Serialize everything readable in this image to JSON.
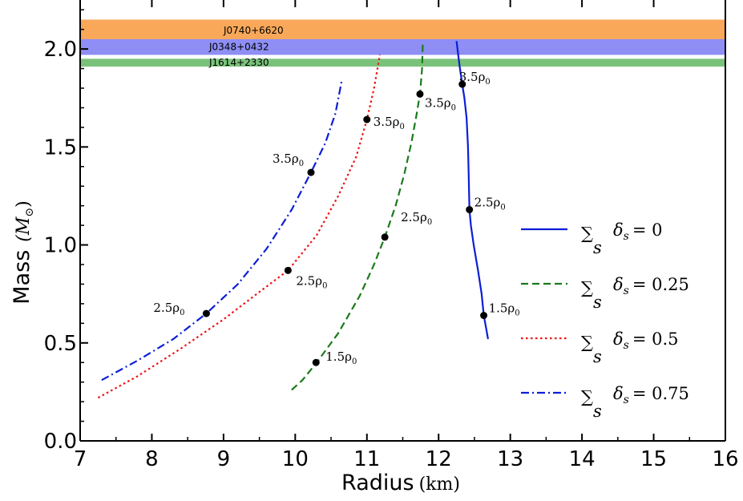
{
  "chart_data": {
    "type": "line",
    "xlabel": "Radius",
    "xlabel_unit": "(km)",
    "ylabel": "Mass",
    "ylabel_unit": "(M",
    "ylabel_unit_sub": "⊙",
    "ylabel_unit_close": ")",
    "xlim": [
      7,
      16
    ],
    "ylim": [
      0.0,
      2.25
    ],
    "x_ticks": [
      7,
      8,
      9,
      10,
      11,
      12,
      13,
      14,
      15,
      16
    ],
    "x_tick_labels": [
      "7",
      "8",
      "9",
      "10",
      "11",
      "12",
      "13",
      "14",
      "15",
      "16"
    ],
    "y_ticks": [
      0.0,
      0.5,
      1.0,
      1.5,
      2.0
    ],
    "y_tick_labels": [
      "0.0",
      "0.5",
      "1.0",
      "1.5",
      "2.0"
    ],
    "legend_position": "right",
    "bands": [
      {
        "name": "J0740+6620",
        "ymin": 2.04,
        "ymax": 2.15,
        "color": "#f9a85a"
      },
      {
        "name": "J0348+0432",
        "ymin": 1.97,
        "ymax": 2.05,
        "color": "#8e8ef5"
      },
      {
        "name": "J1614+2330",
        "ymin": 1.91,
        "ymax": 1.95,
        "color": "#7ac27a"
      }
    ],
    "series": [
      {
        "name": "∑δs = 0",
        "legend_rhs": "= 0",
        "color": "#0b1fd6",
        "dash": "solid",
        "x": [
          12.69,
          12.66,
          12.63,
          12.6,
          12.55,
          12.49,
          12.45,
          12.43,
          12.42,
          12.41,
          12.39,
          12.36,
          12.33,
          12.29,
          12.25
        ],
        "y": [
          0.52,
          0.58,
          0.64,
          0.75,
          0.87,
          1.0,
          1.1,
          1.18,
          1.35,
          1.5,
          1.65,
          1.75,
          1.82,
          1.92,
          2.04
        ],
        "markers": [
          {
            "x": 12.63,
            "y": 0.64,
            "label": "1.5ρ",
            "sub": "0"
          },
          {
            "x": 12.43,
            "y": 1.18,
            "label": "2.5ρ",
            "sub": "0"
          },
          {
            "x": 12.33,
            "y": 1.82,
            "label": "3.5ρ",
            "sub": "0"
          }
        ]
      },
      {
        "name": "∑δs = 0.25",
        "legend_rhs": "= 0.25",
        "color": "#1b7a1b",
        "dash": "long",
        "x": [
          9.95,
          10.1,
          10.3,
          10.6,
          10.9,
          11.1,
          11.25,
          11.4,
          11.52,
          11.62,
          11.69,
          11.74,
          11.77,
          11.78
        ],
        "y": [
          0.26,
          0.31,
          0.4,
          0.55,
          0.74,
          0.9,
          1.04,
          1.2,
          1.36,
          1.52,
          1.66,
          1.77,
          1.9,
          2.04
        ],
        "markers": [
          {
            "x": 10.29,
            "y": 0.4,
            "label": "1.5ρ",
            "sub": "0"
          },
          {
            "x": 11.25,
            "y": 1.04,
            "label": "2.5ρ",
            "sub": "0"
          },
          {
            "x": 11.74,
            "y": 1.77,
            "label": "3.5ρ",
            "sub": "0"
          }
        ]
      },
      {
        "name": "∑δs = 0.5",
        "legend_rhs": "= 0.5",
        "color": "#ee1111",
        "dash": "dotted",
        "x": [
          7.25,
          7.8,
          8.4,
          9.0,
          9.5,
          9.9,
          10.3,
          10.6,
          10.85,
          11.0,
          11.1,
          11.18
        ],
        "y": [
          0.22,
          0.33,
          0.47,
          0.62,
          0.76,
          0.87,
          1.05,
          1.25,
          1.45,
          1.64,
          1.8,
          1.97
        ],
        "markers": [
          {
            "x": 9.9,
            "y": 0.87,
            "label": "2.5ρ",
            "sub": "0"
          },
          {
            "x": 11.0,
            "y": 1.64,
            "label": "3.5ρ",
            "sub": "0"
          }
        ]
      },
      {
        "name": "∑δs = 0.75",
        "legend_rhs": "= 0.75",
        "color": "#0b1fd6",
        "dash": "dashdot",
        "x": [
          7.3,
          7.8,
          8.3,
          8.76,
          9.2,
          9.6,
          9.95,
          10.22,
          10.42,
          10.56,
          10.65
        ],
        "y": [
          0.31,
          0.41,
          0.52,
          0.65,
          0.8,
          0.98,
          1.18,
          1.37,
          1.52,
          1.67,
          1.84
        ],
        "markers": [
          {
            "x": 8.76,
            "y": 0.65,
            "label": "2.5ρ",
            "sub": "0"
          },
          {
            "x": 10.22,
            "y": 1.37,
            "label": "3.5ρ",
            "sub": "0"
          }
        ]
      }
    ]
  }
}
